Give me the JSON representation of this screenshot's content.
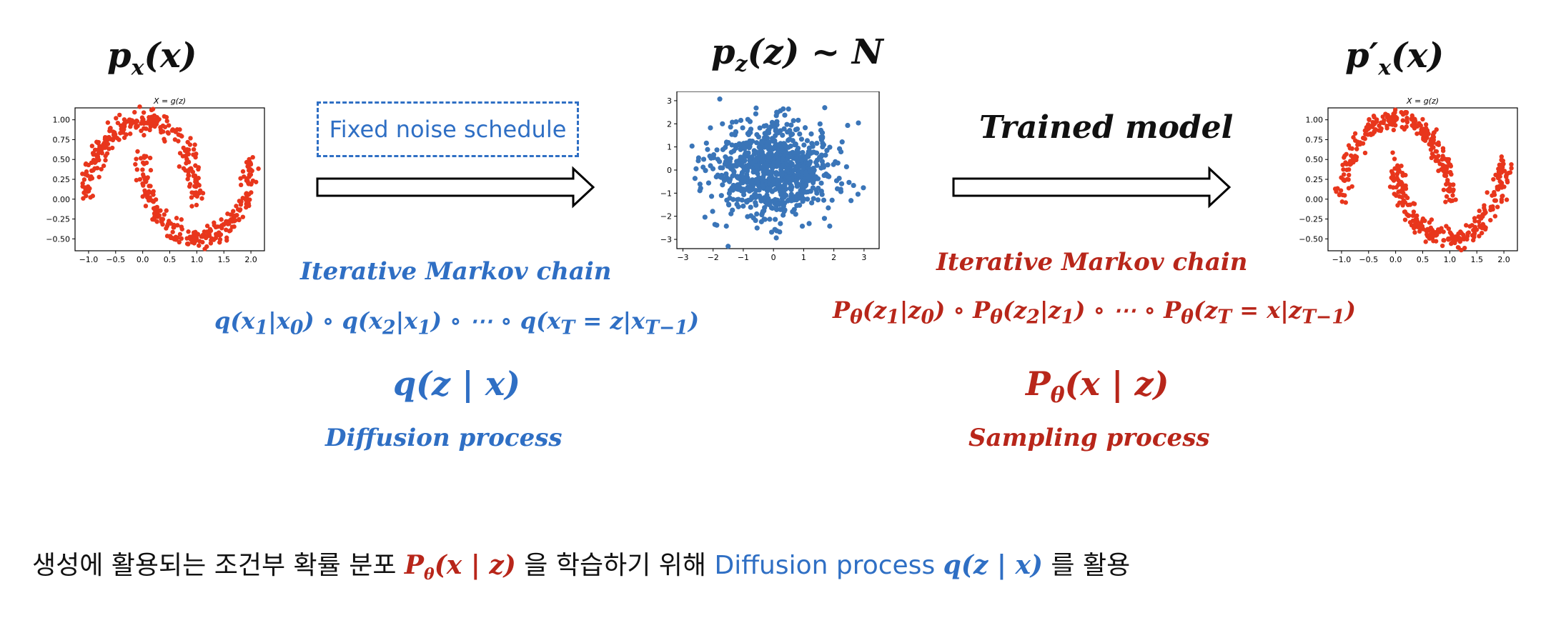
{
  "left_panel": {
    "title": "p_x(x)",
    "plot_title": "X = g(z)",
    "x_ticks": [
      "−1.0",
      "−0.5",
      "0.0",
      "0.5",
      "1.0",
      "1.5",
      "2.0"
    ],
    "y_ticks": [
      "1.00",
      "0.75",
      "0.50",
      "0.25",
      "0.00",
      "−0.25",
      "−0.50"
    ],
    "color": "#e8361c"
  },
  "middle_panel": {
    "title": "p_z(z) ~ N",
    "x_ticks": [
      "−3",
      "−2",
      "−1",
      "0",
      "1",
      "2",
      "3"
    ],
    "y_ticks": [
      "3",
      "2",
      "1",
      "0",
      "−1",
      "−2",
      "−3"
    ],
    "color": "#3a75b8"
  },
  "right_panel": {
    "title": "p′_x(x)",
    "plot_title": "X = g(z)",
    "x_ticks": [
      "−1.0",
      "−0.5",
      "0.0",
      "0.5",
      "1.0",
      "1.5",
      "2.0"
    ],
    "y_ticks": [
      "1.00",
      "0.75",
      "0.50",
      "0.25",
      "0.00",
      "−0.25",
      "−0.50"
    ],
    "color": "#e8361c"
  },
  "diffusion": {
    "noise_label": "Fixed noise schedule",
    "chain_label": "Iterative Markov chain",
    "formula": "q(x₁|x₀) ∘ q(x₂|x₁) ∘ ⋯ ∘ q(x_T = z|x_{T−1})",
    "conditional": "q(z | x)",
    "process_label": "Diffusion process"
  },
  "sampling": {
    "model_label": "Trained model",
    "chain_label": "Iterative Markov chain",
    "formula": "P_θ(z₁|z₀) ∘ P_θ(z₂|z₁) ∘ ⋯ ∘ P_θ(z_T = x|z_{T−1})",
    "conditional": "P_θ(x | z)",
    "process_label": "Sampling process"
  },
  "caption": {
    "part1": "생성에 활용되는 조건부 확률 분포",
    "math1": "P_θ(x | z)",
    "part2": "을 학습하기 위해",
    "part3": "Diffusion process",
    "math2": "q(z | x)",
    "part4": "를 활용"
  }
}
